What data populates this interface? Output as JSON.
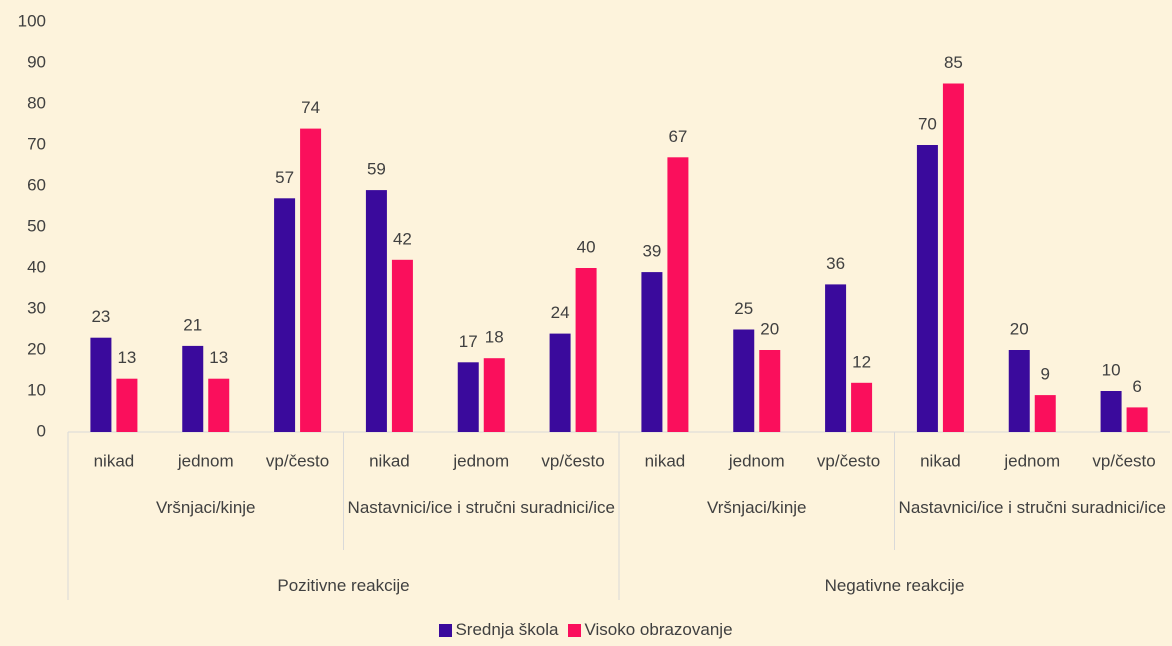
{
  "chart_data": {
    "type": "bar",
    "category_groups": [
      {
        "name": "Pozitivne reakcije",
        "subgroups": [
          {
            "name": "Vršnjaci/kinje",
            "categories": [
              "nikad",
              "jednom",
              "vp/često"
            ]
          },
          {
            "name": "Nastavnici/ice i stručni suradnici/ice",
            "categories": [
              "nikad",
              "jednom",
              "vp/često"
            ]
          }
        ]
      },
      {
        "name": "Negativne reakcije",
        "subgroups": [
          {
            "name": "Vršnjaci/kinje",
            "categories": [
              "nikad",
              "jednom",
              "vp/često"
            ]
          },
          {
            "name": "Nastavnici/ice i stručni suradnici/ice",
            "categories": [
              "nikad",
              "jednom",
              "vp/često"
            ]
          }
        ]
      }
    ],
    "series": [
      {
        "name": "Srednja škola",
        "color": "#3a0a9c",
        "values": [
          23,
          21,
          57,
          59,
          17,
          24,
          39,
          25,
          36,
          70,
          20,
          10
        ]
      },
      {
        "name": "Visoko obrazovanje",
        "color": "#fa0f5c",
        "values": [
          13,
          13,
          74,
          42,
          18,
          40,
          67,
          20,
          12,
          85,
          9,
          6
        ]
      }
    ],
    "ylim": [
      0,
      100
    ],
    "yticks": [
      0,
      10,
      20,
      30,
      40,
      50,
      60,
      70,
      80,
      90,
      100
    ],
    "grid": false,
    "legend": "bottom"
  }
}
